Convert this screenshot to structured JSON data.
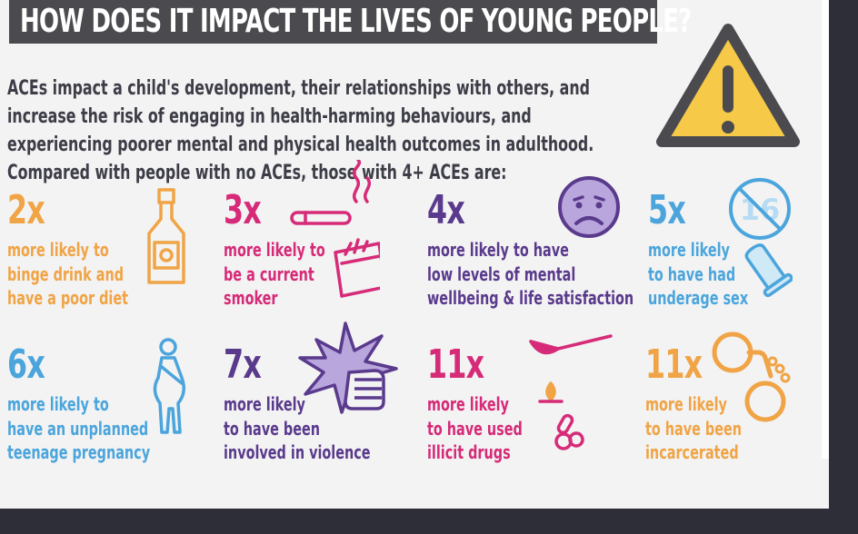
{
  "title": "HOW DOES IT IMPACT THE LIVES OF YOUNG PEOPLE?",
  "intro": "ACEs impact a child's development, their relationships with others, and increase the risk of engaging in health-harming behaviours, and experiencing poorer mental and physical health outcomes in adulthood. Compared with people with no ACEs, those with 4+ ACEs are:",
  "colors": {
    "orange": "#f0a446",
    "magenta": "#d62b78",
    "purple": "#5a3a8c",
    "blue": "#4ba5dc",
    "title_bar": "#4b4b4f",
    "warning_yellow": "#f7c948"
  },
  "stats": [
    {
      "multiplier": "2x",
      "text": "more likely to\nbinge drink and\nhave a poor diet",
      "icon": "bottle-icon"
    },
    {
      "multiplier": "3x",
      "text": "more likely to\nbe a current\nsmoker",
      "icon": "cigarette-icon"
    },
    {
      "multiplier": "4x",
      "text": "more likely to have\nlow levels of mental\nwellbeing & life satisfaction",
      "icon": "sad-face-icon"
    },
    {
      "multiplier": "5x",
      "text": "more likely\nto have had\nunderage sex",
      "icon": "under-16-icon"
    },
    {
      "multiplier": "6x",
      "text": "more likely to\nhave an unplanned\nteenage pregnancy",
      "icon": "pregnant-woman-icon"
    },
    {
      "multiplier": "7x",
      "text": "more likely\nto have been\ninvolved in violence",
      "icon": "fist-punch-icon"
    },
    {
      "multiplier": "11x",
      "text": "more likely\nto have used\nillicit drugs",
      "icon": "drug-spoon-icon"
    },
    {
      "multiplier": "11x",
      "text": "more likely\nto have been\nincarcerated",
      "icon": "handcuffs-icon"
    }
  ],
  "warning_icon": "warning-triangle-icon",
  "badge_text": "16"
}
